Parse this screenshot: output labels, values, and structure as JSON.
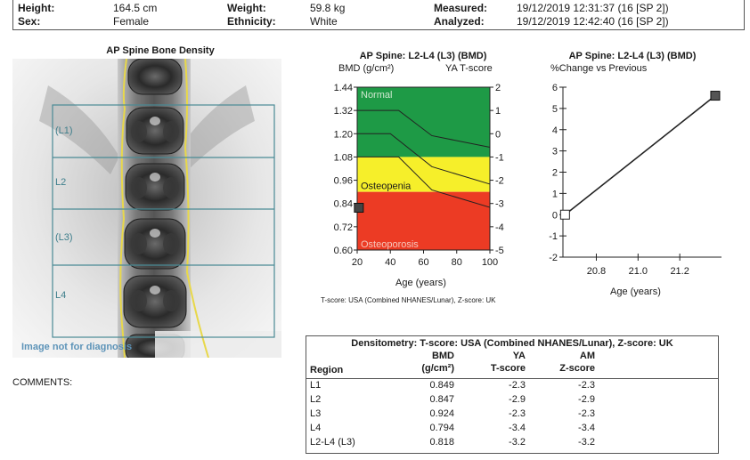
{
  "header": {
    "height_label": "Height:",
    "height_value": "164.5 cm",
    "sex_label": "Sex:",
    "sex_value": "Female",
    "weight_label": "Weight:",
    "weight_value": "59.8 kg",
    "ethnicity_label": "Ethnicity:",
    "ethnicity_value": "White",
    "measured_label": "Measured:",
    "measured_value": "19/12/2019  12:31:37 (16  [SP 2])",
    "analyzed_label": "Analyzed:",
    "analyzed_value": "19/12/2019  12:42:40 (16  [SP 2])"
  },
  "spine_image": {
    "title": "AP Spine Bone Density",
    "regions": [
      "(L1)",
      "L2",
      "(L3)",
      "L4"
    ],
    "watermark": "Image not for diagnosis"
  },
  "comments_label": "COMMENTS:",
  "chart_data": [
    {
      "type": "line",
      "title": "AP Spine: L2-L4 (L3)  (BMD)",
      "ylabel": "BMD (g/cm²)",
      "y2label": "YA T-score",
      "xlabel": "Age (years)",
      "footnote": "T-score: USA (Combined NHANES/Lunar), Z-score: UK",
      "xlim": [
        20,
        100
      ],
      "ylim": [
        0.6,
        1.44
      ],
      "y2lim": [
        -5,
        2
      ],
      "xticks": [
        "20",
        "40",
        "60",
        "80",
        "100"
      ],
      "yticks": [
        "0.60",
        "0.72",
        "0.84",
        "0.96",
        "1.08",
        "1.20",
        "1.32",
        "1.44"
      ],
      "y2ticks": [
        "-5",
        "-4",
        "-3",
        "-2",
        "-1",
        "0",
        "1",
        "2"
      ],
      "zones": [
        {
          "label": "Normal",
          "from": 1.08,
          "to": 1.44,
          "color": "#1e9a46"
        },
        {
          "label": "Osteopenia",
          "from": 0.9,
          "to": 1.08,
          "color": "#f6ef2a"
        },
        {
          "label": "Osteoporosis",
          "from": 0.6,
          "to": 0.9,
          "color": "#ec3b24"
        }
      ],
      "series": [
        {
          "name": "upper",
          "x": [
            20,
            45,
            65,
            100
          ],
          "y": [
            1.32,
            1.32,
            1.19,
            1.13
          ]
        },
        {
          "name": "middle",
          "x": [
            20,
            40,
            65,
            100
          ],
          "y": [
            1.2,
            1.2,
            1.03,
            0.94
          ]
        },
        {
          "name": "lower",
          "x": [
            20,
            45,
            65,
            100
          ],
          "y": [
            1.08,
            1.08,
            0.91,
            0.82
          ]
        }
      ],
      "patient_point": {
        "x": 21,
        "y": 0.818
      }
    },
    {
      "type": "line",
      "title": "AP Spine: L2-L4 (L3)  (BMD)",
      "ylabel": "%Change vs Previous",
      "xlabel": "Age (years)",
      "xlim": [
        20.64,
        21.4
      ],
      "ylim": [
        -2,
        6
      ],
      "xticks": [
        "20.8",
        "21.0",
        "21.2"
      ],
      "xtick_values": [
        20.8,
        21.0,
        21.2
      ],
      "yticks": [
        "-2",
        "-1",
        "0",
        "1",
        "2",
        "3",
        "4",
        "5",
        "6"
      ],
      "series": [
        {
          "name": "change",
          "x": [
            20.65,
            21.37
          ],
          "y": [
            0.0,
            5.6
          ]
        }
      ]
    }
  ],
  "table": {
    "title": "Densitometry: T-score: USA (Combined NHANES/Lunar), Z-score: UK",
    "headers": {
      "region": "Region",
      "bmd_top": "BMD",
      "bmd_bottom": "(g/cm²)",
      "ya_top": "YA",
      "ya_bottom": "T-score",
      "am_top": "AM",
      "am_bottom": "Z-score"
    },
    "rows": [
      {
        "region": "L1",
        "bmd": "0.849",
        "t": "-2.3",
        "z": "-2.3"
      },
      {
        "region": "L2",
        "bmd": "0.847",
        "t": "-2.9",
        "z": "-2.9"
      },
      {
        "region": "L3",
        "bmd": "0.924",
        "t": "-2.3",
        "z": "-2.3"
      },
      {
        "region": "L4",
        "bmd": "0.794",
        "t": "-3.4",
        "z": "-3.4"
      },
      {
        "region": "L2-L4 (L3)",
        "bmd": "0.818",
        "t": "-3.2",
        "z": "-3.2"
      }
    ]
  }
}
